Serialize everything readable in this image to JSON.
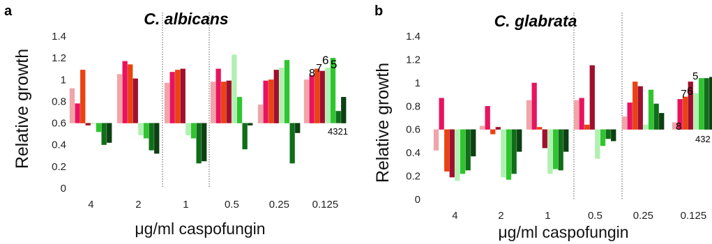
{
  "colors": [
    "#f0a5a8",
    "#e8135f",
    "#ea4213",
    "#a10f2e",
    "#b0f0b2",
    "#2fc52f",
    "#0f6e18",
    "#0d4012"
  ],
  "chart_data": [
    {
      "panel": "a",
      "type": "bar",
      "title": "C. albicans",
      "xlabel": "μg/ml caspofungin",
      "ylabel": "Relative growth",
      "baseline": 0.6,
      "ylim": [
        0,
        1.4
      ],
      "yticks": [
        "0",
        "0.2",
        "0.4",
        "0.6",
        "0.8",
        "1",
        "1.2",
        "1.4"
      ],
      "categories": [
        "4",
        "2",
        "1",
        "0.5",
        "0.25",
        "0.125"
      ],
      "separators_after": [
        2,
        3
      ],
      "series": [
        {
          "name": "8",
          "values": [
            0.92,
            1.05,
            0.97,
            0.98,
            0.77,
            1.0
          ]
        },
        {
          "name": "7",
          "values": [
            0.78,
            1.17,
            1.07,
            1.1,
            0.99,
            1.04
          ]
        },
        {
          "name": "6",
          "values": [
            1.09,
            1.14,
            1.09,
            0.98,
            1.0,
            1.1
          ]
        },
        {
          "name": "5",
          "values": [
            0.58,
            1.01,
            1.1,
            0.99,
            1.09,
            1.08
          ]
        },
        {
          "name": "4",
          "values": [
            0.6,
            0.49,
            0.49,
            1.23,
            1.11,
            1.11
          ]
        },
        {
          "name": "3",
          "values": [
            0.52,
            0.46,
            0.46,
            0.84,
            1.18,
            1.2
          ]
        },
        {
          "name": "2",
          "values": [
            0.4,
            0.35,
            0.23,
            0.36,
            0.23,
            0.71
          ]
        },
        {
          "name": "1",
          "values": [
            0.42,
            0.32,
            0.25,
            0.58,
            0.51,
            0.84
          ]
        }
      ],
      "annotations": {
        "top_left": "8",
        "top_mid": "7",
        "top_right1": "6",
        "top_right2": "5",
        "bottom": "4321"
      }
    },
    {
      "panel": "b",
      "type": "bar",
      "title": "C. glabrata",
      "xlabel": "μg/ml caspofungin",
      "ylabel": "Relative growth",
      "baseline": 0.6,
      "ylim": [
        0,
        1.4
      ],
      "yticks": [
        "0",
        "0.2",
        "0.4",
        "0.6",
        "0.8",
        "1",
        "1.2",
        "1.4"
      ],
      "categories": [
        "4",
        "2",
        "1",
        "0.5",
        "0.25",
        "0.125"
      ],
      "separators_after": [
        2,
        3
      ],
      "series": [
        {
          "name": "8",
          "values": [
            0.42,
            0.63,
            0.85,
            0.85,
            0.71,
            0.66
          ]
        },
        {
          "name": "7",
          "values": [
            0.87,
            0.8,
            1.0,
            0.87,
            0.83,
            0.86
          ]
        },
        {
          "name": "6",
          "values": [
            0.24,
            0.56,
            0.62,
            0.64,
            1.01,
            0.88
          ]
        },
        {
          "name": "5",
          "values": [
            0.19,
            0.62,
            0.44,
            1.15,
            0.97,
            1.01
          ]
        },
        {
          "name": "4",
          "values": [
            0.16,
            0.19,
            0.22,
            0.35,
            0.64,
            0.91
          ]
        },
        {
          "name": "3",
          "values": [
            0.22,
            0.17,
            0.26,
            0.46,
            0.94,
            1.04
          ]
        },
        {
          "name": "2",
          "values": [
            0.25,
            0.22,
            0.25,
            0.52,
            0.82,
            1.04
          ]
        },
        {
          "name": "1",
          "values": [
            0.37,
            0.41,
            0.41,
            0.5,
            0.74,
            1.05
          ]
        }
      ],
      "annotations": {
        "top_left": "8",
        "top_mid": "7",
        "top_right1": "6",
        "top_right2": "5",
        "bottom": "432"
      }
    }
  ]
}
